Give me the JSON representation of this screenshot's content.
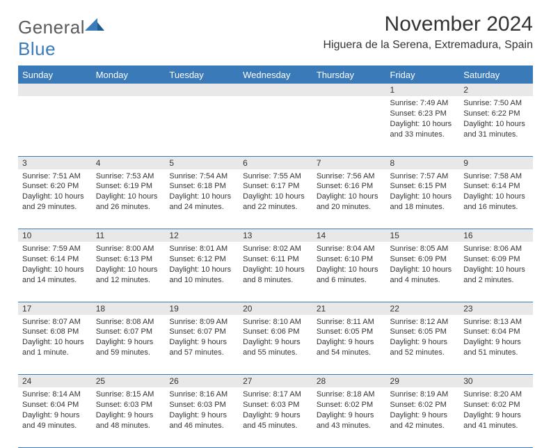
{
  "logo": {
    "text_general": "General",
    "text_blue": "Blue"
  },
  "header": {
    "title": "November 2024",
    "location": "Higuera de la Serena, Extremadura, Spain"
  },
  "style": {
    "accent": "#3a7ab8",
    "header_bg": "#3a7ab8",
    "header_fg": "#ffffff",
    "daynum_bg": "#e8e8e8",
    "text_color": "#333333",
    "page_bg": "#ffffff",
    "title_fontsize": 30,
    "location_fontsize": 16,
    "dayheader_fontsize": 13,
    "cell_fontsize": 11
  },
  "weekdays": [
    "Sunday",
    "Monday",
    "Tuesday",
    "Wednesday",
    "Thursday",
    "Friday",
    "Saturday"
  ],
  "weeks": [
    {
      "nums": [
        "",
        "",
        "",
        "",
        "",
        "1",
        "2"
      ],
      "cells": [
        {
          "sunrise": "",
          "sunset": "",
          "daylight": ""
        },
        {
          "sunrise": "",
          "sunset": "",
          "daylight": ""
        },
        {
          "sunrise": "",
          "sunset": "",
          "daylight": ""
        },
        {
          "sunrise": "",
          "sunset": "",
          "daylight": ""
        },
        {
          "sunrise": "",
          "sunset": "",
          "daylight": ""
        },
        {
          "sunrise": "Sunrise: 7:49 AM",
          "sunset": "Sunset: 6:23 PM",
          "daylight": "Daylight: 10 hours and 33 minutes."
        },
        {
          "sunrise": "Sunrise: 7:50 AM",
          "sunset": "Sunset: 6:22 PM",
          "daylight": "Daylight: 10 hours and 31 minutes."
        }
      ]
    },
    {
      "nums": [
        "3",
        "4",
        "5",
        "6",
        "7",
        "8",
        "9"
      ],
      "cells": [
        {
          "sunrise": "Sunrise: 7:51 AM",
          "sunset": "Sunset: 6:20 PM",
          "daylight": "Daylight: 10 hours and 29 minutes."
        },
        {
          "sunrise": "Sunrise: 7:53 AM",
          "sunset": "Sunset: 6:19 PM",
          "daylight": "Daylight: 10 hours and 26 minutes."
        },
        {
          "sunrise": "Sunrise: 7:54 AM",
          "sunset": "Sunset: 6:18 PM",
          "daylight": "Daylight: 10 hours and 24 minutes."
        },
        {
          "sunrise": "Sunrise: 7:55 AM",
          "sunset": "Sunset: 6:17 PM",
          "daylight": "Daylight: 10 hours and 22 minutes."
        },
        {
          "sunrise": "Sunrise: 7:56 AM",
          "sunset": "Sunset: 6:16 PM",
          "daylight": "Daylight: 10 hours and 20 minutes."
        },
        {
          "sunrise": "Sunrise: 7:57 AM",
          "sunset": "Sunset: 6:15 PM",
          "daylight": "Daylight: 10 hours and 18 minutes."
        },
        {
          "sunrise": "Sunrise: 7:58 AM",
          "sunset": "Sunset: 6:14 PM",
          "daylight": "Daylight: 10 hours and 16 minutes."
        }
      ]
    },
    {
      "nums": [
        "10",
        "11",
        "12",
        "13",
        "14",
        "15",
        "16"
      ],
      "cells": [
        {
          "sunrise": "Sunrise: 7:59 AM",
          "sunset": "Sunset: 6:14 PM",
          "daylight": "Daylight: 10 hours and 14 minutes."
        },
        {
          "sunrise": "Sunrise: 8:00 AM",
          "sunset": "Sunset: 6:13 PM",
          "daylight": "Daylight: 10 hours and 12 minutes."
        },
        {
          "sunrise": "Sunrise: 8:01 AM",
          "sunset": "Sunset: 6:12 PM",
          "daylight": "Daylight: 10 hours and 10 minutes."
        },
        {
          "sunrise": "Sunrise: 8:02 AM",
          "sunset": "Sunset: 6:11 PM",
          "daylight": "Daylight: 10 hours and 8 minutes."
        },
        {
          "sunrise": "Sunrise: 8:04 AM",
          "sunset": "Sunset: 6:10 PM",
          "daylight": "Daylight: 10 hours and 6 minutes."
        },
        {
          "sunrise": "Sunrise: 8:05 AM",
          "sunset": "Sunset: 6:09 PM",
          "daylight": "Daylight: 10 hours and 4 minutes."
        },
        {
          "sunrise": "Sunrise: 8:06 AM",
          "sunset": "Sunset: 6:09 PM",
          "daylight": "Daylight: 10 hours and 2 minutes."
        }
      ]
    },
    {
      "nums": [
        "17",
        "18",
        "19",
        "20",
        "21",
        "22",
        "23"
      ],
      "cells": [
        {
          "sunrise": "Sunrise: 8:07 AM",
          "sunset": "Sunset: 6:08 PM",
          "daylight": "Daylight: 10 hours and 1 minute."
        },
        {
          "sunrise": "Sunrise: 8:08 AM",
          "sunset": "Sunset: 6:07 PM",
          "daylight": "Daylight: 9 hours and 59 minutes."
        },
        {
          "sunrise": "Sunrise: 8:09 AM",
          "sunset": "Sunset: 6:07 PM",
          "daylight": "Daylight: 9 hours and 57 minutes."
        },
        {
          "sunrise": "Sunrise: 8:10 AM",
          "sunset": "Sunset: 6:06 PM",
          "daylight": "Daylight: 9 hours and 55 minutes."
        },
        {
          "sunrise": "Sunrise: 8:11 AM",
          "sunset": "Sunset: 6:05 PM",
          "daylight": "Daylight: 9 hours and 54 minutes."
        },
        {
          "sunrise": "Sunrise: 8:12 AM",
          "sunset": "Sunset: 6:05 PM",
          "daylight": "Daylight: 9 hours and 52 minutes."
        },
        {
          "sunrise": "Sunrise: 8:13 AM",
          "sunset": "Sunset: 6:04 PM",
          "daylight": "Daylight: 9 hours and 51 minutes."
        }
      ]
    },
    {
      "nums": [
        "24",
        "25",
        "26",
        "27",
        "28",
        "29",
        "30"
      ],
      "cells": [
        {
          "sunrise": "Sunrise: 8:14 AM",
          "sunset": "Sunset: 6:04 PM",
          "daylight": "Daylight: 9 hours and 49 minutes."
        },
        {
          "sunrise": "Sunrise: 8:15 AM",
          "sunset": "Sunset: 6:03 PM",
          "daylight": "Daylight: 9 hours and 48 minutes."
        },
        {
          "sunrise": "Sunrise: 8:16 AM",
          "sunset": "Sunset: 6:03 PM",
          "daylight": "Daylight: 9 hours and 46 minutes."
        },
        {
          "sunrise": "Sunrise: 8:17 AM",
          "sunset": "Sunset: 6:03 PM",
          "daylight": "Daylight: 9 hours and 45 minutes."
        },
        {
          "sunrise": "Sunrise: 8:18 AM",
          "sunset": "Sunset: 6:02 PM",
          "daylight": "Daylight: 9 hours and 43 minutes."
        },
        {
          "sunrise": "Sunrise: 8:19 AM",
          "sunset": "Sunset: 6:02 PM",
          "daylight": "Daylight: 9 hours and 42 minutes."
        },
        {
          "sunrise": "Sunrise: 8:20 AM",
          "sunset": "Sunset: 6:02 PM",
          "daylight": "Daylight: 9 hours and 41 minutes."
        }
      ]
    }
  ]
}
